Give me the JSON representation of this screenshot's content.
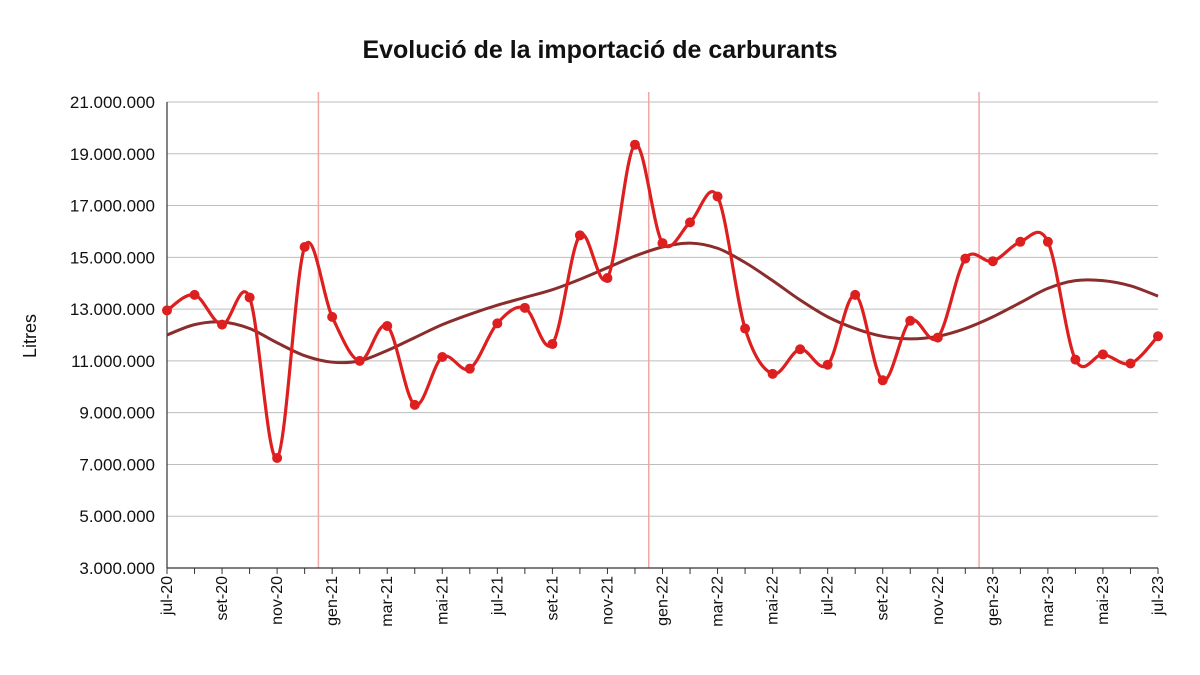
{
  "chart_data": {
    "type": "line",
    "title": "Evolució de la importació de carburants",
    "xlabel": "",
    "ylabel": "Litres",
    "ylim": [
      3000000,
      21000000
    ],
    "y_ticks": [
      "3.000.000",
      "5.000.000",
      "7.000.000",
      "9.000.000",
      "11.000.000",
      "13.000.000",
      "15.000.000",
      "17.000.000",
      "19.000.000",
      "21.000.000"
    ],
    "x_tick_labels": [
      "jul-20",
      "set-20",
      "nov-20",
      "gen-21",
      "mar-21",
      "mai-21",
      "jul-21",
      "set-21",
      "nov-21",
      "gen-22",
      "mar-22",
      "mai-22",
      "jul-22",
      "set-22",
      "nov-22",
      "gen-23",
      "mar-23",
      "mai-23",
      "jul-23"
    ],
    "x": [
      "jul-20",
      "ago-20",
      "set-20",
      "oct-20",
      "nov-20",
      "des-20",
      "gen-21",
      "feb-21",
      "mar-21",
      "abr-21",
      "mai-21",
      "jun-21",
      "jul-21",
      "ago-21",
      "set-21",
      "oct-21",
      "nov-21",
      "des-21",
      "gen-22",
      "feb-22",
      "mar-22",
      "abr-22",
      "mai-22",
      "jun-22",
      "jul-22",
      "ago-22",
      "set-22",
      "oct-22",
      "nov-22",
      "des-22",
      "gen-23",
      "feb-23",
      "mar-23",
      "abr-23",
      "mai-23",
      "jun-23",
      "jul-23"
    ],
    "grid": true,
    "year_separators_after": [
      "des-20",
      "des-21",
      "des-22"
    ],
    "series": [
      {
        "color": "#dd1f1f",
        "marker": "circle",
        "smooth": true,
        "values": [
          12950000,
          13550000,
          12400000,
          13450000,
          7250000,
          15400000,
          12700000,
          11000000,
          12350000,
          9300000,
          11150000,
          10700000,
          12450000,
          13050000,
          11650000,
          15850000,
          14200000,
          19350000,
          15550000,
          16350000,
          17350000,
          12250000,
          10500000,
          11450000,
          10850000,
          13550000,
          10250000,
          12550000,
          11900000,
          14950000,
          14850000,
          15600000,
          15600000,
          11050000,
          11250000,
          10900000,
          11950000
        ]
      },
      {
        "color": "#8b2d2d",
        "marker": "none",
        "smooth": true,
        "values": [
          12000000,
          12400000,
          12500000,
          12250000,
          11700000,
          11200000,
          10950000,
          11000000,
          11400000,
          11900000,
          12400000,
          12800000,
          13150000,
          13450000,
          13750000,
          14150000,
          14600000,
          15050000,
          15400000,
          15550000,
          15350000,
          14800000,
          14100000,
          13350000,
          12700000,
          12250000,
          11950000,
          11850000,
          11950000,
          12250000,
          12700000,
          13250000,
          13800000,
          14100000,
          14100000,
          13900000,
          13500000
        ]
      }
    ],
    "legend_placement": "bottom (cut off)"
  }
}
